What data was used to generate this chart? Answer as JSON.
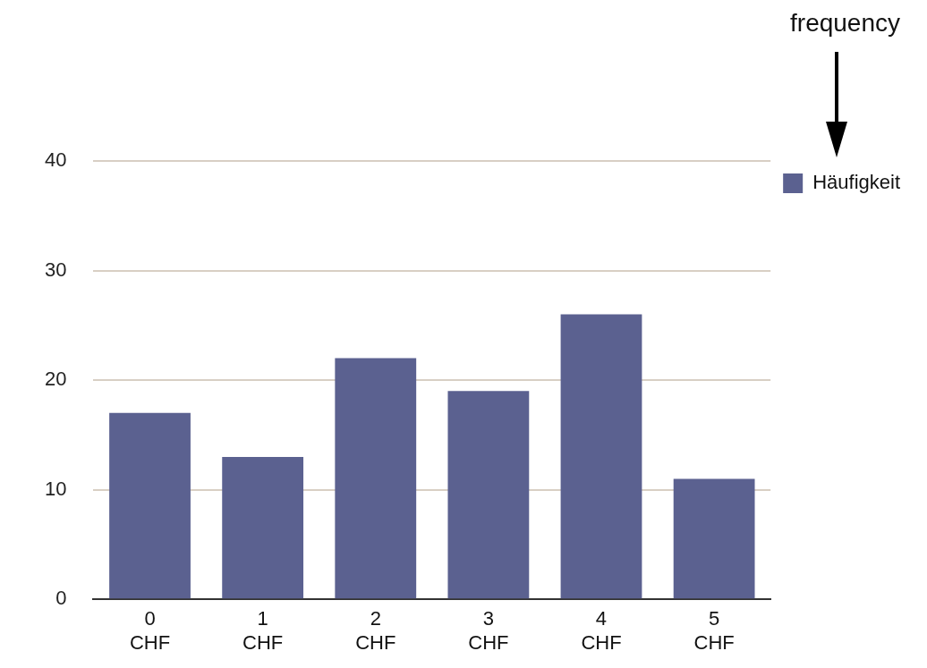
{
  "chart_data": {
    "type": "bar",
    "categories": [
      "0 CHF",
      "1 CHF",
      "2 CHF",
      "3 CHF",
      "4 CHF",
      "5 CHF"
    ],
    "series": [
      {
        "name": "Häufigkeit",
        "color": "#5b6190",
        "values": [
          17,
          13,
          22,
          19,
          26,
          11
        ]
      }
    ],
    "ylim": [
      0,
      40
    ],
    "yticks": [
      0,
      10,
      20,
      30,
      40
    ],
    "grid": "y",
    "legend": "top right",
    "annotations": [
      "frequency"
    ]
  }
}
